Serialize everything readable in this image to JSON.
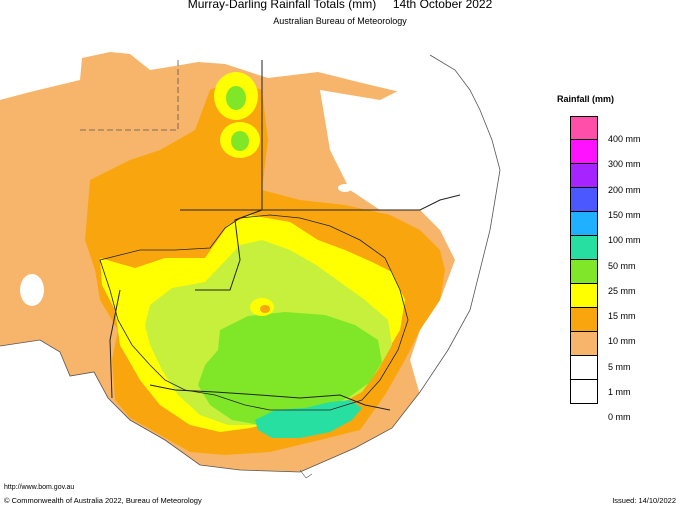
{
  "header": {
    "title": "Murray-Darling Rainfall Totals (mm)     14th October 2022",
    "subtitle": "Australian Bureau of Meteorology"
  },
  "legend": {
    "title": "Rainfall (mm)",
    "items": [
      {
        "label": "400 mm",
        "color": "#ff4fa8"
      },
      {
        "label": "300 mm",
        "color": "#ff12ff"
      },
      {
        "label": "200 mm",
        "color": "#a524ff"
      },
      {
        "label": "150 mm",
        "color": "#4b57ff"
      },
      {
        "label": "100 mm",
        "color": "#1fb0ff"
      },
      {
        "label": "50 mm",
        "color": "#27dfa0"
      },
      {
        "label": "25 mm",
        "color": "#7fe727"
      },
      {
        "label": "15 mm",
        "color": "#ffff00"
      },
      {
        "label": "10 mm",
        "color": "#f9a60e"
      },
      {
        "label": "5 mm",
        "color": "#f7b56b"
      },
      {
        "label": "1 mm",
        "color": "#ffffff"
      },
      {
        "label": "0 mm",
        "color": "#ffffff"
      }
    ]
  },
  "footer": {
    "url": "http://www.bom.gov.au",
    "copyright": "© Commonwealth of Australia 2022, Bureau of Meteorology",
    "issued": "Issued: 14/10/2022"
  }
}
